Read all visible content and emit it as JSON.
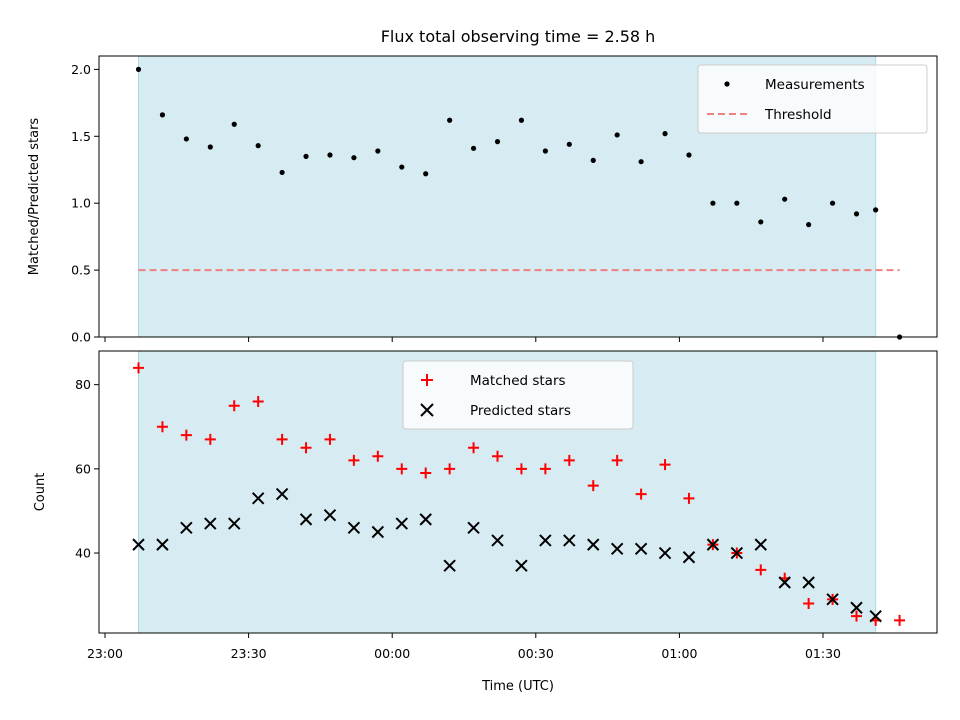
{
  "chart_data": [
    {
      "type": "scatter",
      "title": "Flux total observing time = 2.58 h",
      "xlabel": "",
      "ylabel": "Matched/Predicted stars",
      "ylim": [
        0,
        2.1
      ],
      "yticks": [
        "0.0",
        "0.5",
        "1.0",
        "1.5",
        "2.0"
      ],
      "shaded_interval": [
        "23:07",
        "01:41"
      ],
      "shade_color": "#add8e6",
      "threshold": 0.5,
      "threshold_range": [
        "23:07",
        "01:46"
      ],
      "legend_position": "top-right",
      "series": [
        {
          "name": "Measurements",
          "marker": "dot",
          "color": "#000000",
          "x": [
            "23:07",
            "23:12",
            "23:17",
            "23:22",
            "23:27",
            "23:32",
            "23:37",
            "23:42",
            "23:47",
            "23:52",
            "23:57",
            "00:02",
            "00:07",
            "00:12",
            "00:17",
            "00:22",
            "00:27",
            "00:32",
            "00:37",
            "00:42",
            "00:47",
            "00:52",
            "00:57",
            "01:02",
            "01:07",
            "01:12",
            "01:17",
            "01:22",
            "01:27",
            "01:32",
            "01:37",
            "01:41",
            "01:46"
          ],
          "y": [
            2.0,
            1.66,
            1.48,
            1.42,
            1.59,
            1.43,
            1.23,
            1.35,
            1.36,
            1.34,
            1.39,
            1.27,
            1.22,
            1.62,
            1.41,
            1.46,
            1.62,
            1.39,
            1.44,
            1.32,
            1.51,
            1.31,
            1.52,
            1.36,
            1.0,
            1.0,
            0.86,
            1.03,
            0.84,
            1.0,
            0.92,
            0.95,
            0.0
          ]
        },
        {
          "name": "Threshold",
          "style": "dashed",
          "color": "#f08080"
        }
      ]
    },
    {
      "type": "scatter",
      "title": "",
      "xlabel": "Time (UTC)",
      "ylabel": "Count",
      "ylim": [
        21,
        88
      ],
      "yticks": [
        "40",
        "60",
        "80"
      ],
      "xticks": [
        "23:00",
        "23:30",
        "00:00",
        "00:30",
        "01:00",
        "01:30"
      ],
      "shaded_interval": [
        "23:07",
        "01:41"
      ],
      "shade_color": "#add8e6",
      "legend_position": "top-center",
      "series": [
        {
          "name": "Matched stars",
          "marker": "plus",
          "color": "#ff0000",
          "x": [
            "23:07",
            "23:12",
            "23:17",
            "23:22",
            "23:27",
            "23:32",
            "23:37",
            "23:42",
            "23:47",
            "23:52",
            "23:57",
            "00:02",
            "00:07",
            "00:12",
            "00:17",
            "00:22",
            "00:27",
            "00:32",
            "00:37",
            "00:42",
            "00:47",
            "00:52",
            "00:57",
            "01:02",
            "01:07",
            "01:12",
            "01:17",
            "01:22",
            "01:27",
            "01:32",
            "01:37",
            "01:41",
            "01:46"
          ],
          "y": [
            84,
            70,
            68,
            67,
            75,
            76,
            67,
            65,
            67,
            62,
            63,
            60,
            59,
            60,
            65,
            63,
            60,
            60,
            62,
            56,
            62,
            54,
            61,
            53,
            42,
            40,
            36,
            34,
            28,
            29,
            25,
            24,
            24
          ]
        },
        {
          "name": "Predicted stars",
          "marker": "x",
          "color": "#000000",
          "x": [
            "23:07",
            "23:12",
            "23:17",
            "23:22",
            "23:27",
            "23:32",
            "23:37",
            "23:42",
            "23:47",
            "23:52",
            "23:57",
            "00:02",
            "00:07",
            "00:12",
            "00:17",
            "00:22",
            "00:27",
            "00:32",
            "00:37",
            "00:42",
            "00:47",
            "00:52",
            "00:57",
            "01:02",
            "01:07",
            "01:12",
            "01:17",
            "01:22",
            "01:27",
            "01:32",
            "01:37",
            "01:41"
          ],
          "y": [
            42,
            42,
            46,
            47,
            47,
            53,
            54,
            48,
            49,
            46,
            45,
            47,
            48,
            37,
            46,
            43,
            37,
            43,
            43,
            42,
            41,
            41,
            40,
            39,
            42,
            40,
            42,
            33,
            33,
            29,
            27,
            25
          ]
        }
      ]
    }
  ]
}
